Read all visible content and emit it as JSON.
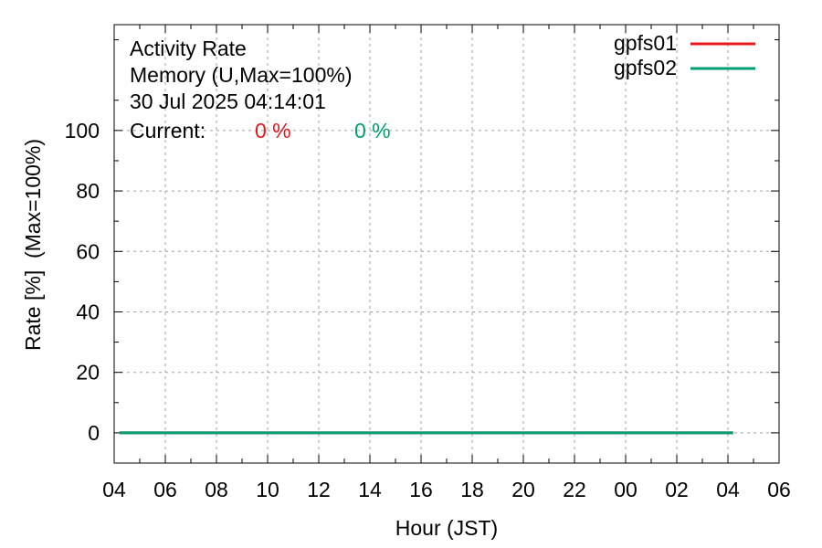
{
  "chart_data": {
    "type": "line",
    "title_lines": [
      "Activity Rate",
      "Memory (U,Max=100%)",
      "30 Jul 2025 04:14:01"
    ],
    "current_label": "Current:",
    "current_values": [
      {
        "series": "gpfs01",
        "text": "0 %"
      },
      {
        "series": "gpfs02",
        "text": "0 %"
      }
    ],
    "xlabel": "Hour (JST)",
    "ylabel": "Rate [%]  (Max=100%)",
    "x_ticks": [
      "04",
      "06",
      "08",
      "10",
      "12",
      "14",
      "16",
      "18",
      "20",
      "22",
      "00",
      "02",
      "04",
      "06"
    ],
    "y_ticks": [
      0,
      20,
      40,
      60,
      80,
      100
    ],
    "ylim": [
      -10,
      135
    ],
    "xlim_hours": [
      0,
      26
    ],
    "grid": true,
    "legend_position": "top-right",
    "series": [
      {
        "name": "gpfs01",
        "color": "#e41a1c",
        "x": [
          0.2,
          24.2
        ],
        "values": [
          0,
          0
        ]
      },
      {
        "name": "gpfs02",
        "color": "#009e73",
        "x": [
          0.2,
          24.2
        ],
        "values": [
          0,
          0
        ]
      }
    ]
  }
}
